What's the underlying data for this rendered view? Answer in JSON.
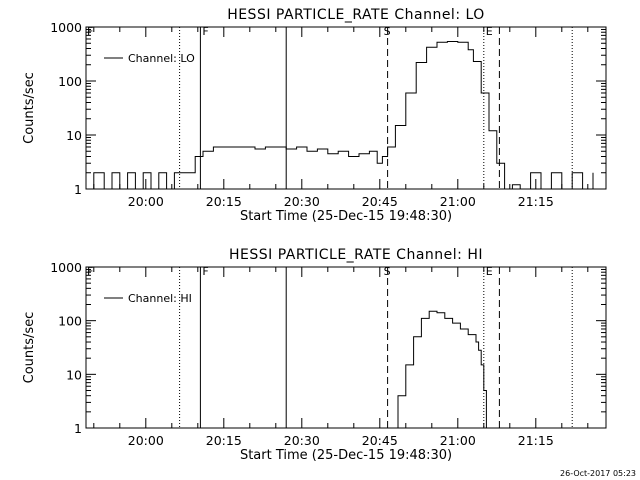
{
  "chart_data": [
    {
      "type": "line",
      "title": "HESSI PARTICLE_RATE Channel: LO",
      "xlabel": "Start Time (25-Dec-15 19:48:30)",
      "ylabel": "Counts/sec",
      "y_scale": "log",
      "ylim": [
        1,
        1000
      ],
      "xlim": [
        "19:48:30",
        "21:28:30"
      ],
      "x_ticks": [
        "20:00",
        "20:15",
        "20:30",
        "20:45",
        "21:00",
        "21:15"
      ],
      "y_ticks": [
        "1",
        "10",
        "100",
        "1000"
      ],
      "legend": "top-left",
      "series": [
        {
          "name": "Channel: LO",
          "x": [
            "19:48:30",
            "19:50:00",
            "19:52:00",
            "19:53:30",
            "19:55:00",
            "19:56:30",
            "19:58:00",
            "19:59:30",
            "20:01:00",
            "20:02:30",
            "20:04:00",
            "20:05:30",
            "20:07:00",
            "20:08:00",
            "20:09:30",
            "20:11:00",
            "20:13:00",
            "20:15:00",
            "20:17:00",
            "20:19:00",
            "20:21:00",
            "20:23:00",
            "20:25:00",
            "20:27:00",
            "20:29:00",
            "20:31:00",
            "20:33:00",
            "20:35:00",
            "20:37:00",
            "20:39:00",
            "20:41:00",
            "20:43:00",
            "20:44:30",
            "20:45:30",
            "20:46:30",
            "20:48:00",
            "20:50:00",
            "20:52:00",
            "20:54:00",
            "20:56:00",
            "20:58:00",
            "21:00:00",
            "21:02:00",
            "21:03:00",
            "21:04:30",
            "21:06:00",
            "21:07:30",
            "21:09:00",
            "21:10:30",
            "21:12:00",
            "21:14:00",
            "21:16:00",
            "21:18:00",
            "21:20:00",
            "21:22:00",
            "21:24:00",
            "21:26:00"
          ],
          "values": [
            1,
            2,
            1,
            2,
            1,
            2,
            1,
            2,
            1,
            2,
            1,
            2,
            2,
            2,
            4,
            5,
            6,
            6,
            6,
            6,
            5.5,
            6,
            6,
            5.5,
            6,
            5,
            5.5,
            4.5,
            5,
            4,
            4.5,
            5,
            3,
            4,
            6,
            15,
            60,
            220,
            420,
            520,
            540,
            520,
            380,
            230,
            60,
            12,
            3,
            1,
            1.2,
            1,
            2,
            1,
            2,
            1,
            2,
            1,
            2
          ]
        }
      ]
    },
    {
      "type": "line",
      "title": "HESSI PARTICLE_RATE Channel: HI",
      "xlabel": "Start Time (25-Dec-15 19:48:30)",
      "ylabel": "Counts/sec",
      "y_scale": "log",
      "ylim": [
        1,
        1000
      ],
      "xlim": [
        "19:48:30",
        "21:28:30"
      ],
      "x_ticks": [
        "20:00",
        "20:15",
        "20:30",
        "20:45",
        "21:00",
        "21:15"
      ],
      "y_ticks": [
        "1",
        "10",
        "100",
        "1000"
      ],
      "legend": "top-left",
      "series": [
        {
          "name": "Channel: HI",
          "x": [
            "20:47:00",
            "20:48:30",
            "20:50:00",
            "20:51:30",
            "20:53:00",
            "20:54:30",
            "20:56:00",
            "20:57:30",
            "20:59:00",
            "21:00:30",
            "21:02:00",
            "21:03:30",
            "21:04:00",
            "21:04:30",
            "21:05:00",
            "21:05:30"
          ],
          "values": [
            1,
            4,
            15,
            50,
            110,
            150,
            140,
            110,
            90,
            70,
            55,
            40,
            28,
            15,
            5,
            1
          ]
        }
      ]
    }
  ],
  "markers": [
    {
      "time": "20:06:30",
      "style": "dotted",
      "label": "",
      "label_pos": "none"
    },
    {
      "time": "20:10:30",
      "style": "solid",
      "label": "F",
      "label_pos": "right"
    },
    {
      "time": "20:27:00",
      "style": "solid",
      "label": "",
      "label_pos": "none"
    },
    {
      "time": "20:46:30",
      "style": "dashed",
      "label": "S",
      "label_pos": "on"
    },
    {
      "time": "21:05:00",
      "style": "dotted",
      "label": "E",
      "label_pos": "right"
    },
    {
      "time": "21:08:00",
      "style": "dashed",
      "label": "",
      "label_pos": "none"
    },
    {
      "time": "21:22:00",
      "style": "dotted",
      "label": "",
      "label_pos": "none"
    }
  ],
  "left_marker_label": "F",
  "timestamp": "26-Oct-2017 05:23"
}
